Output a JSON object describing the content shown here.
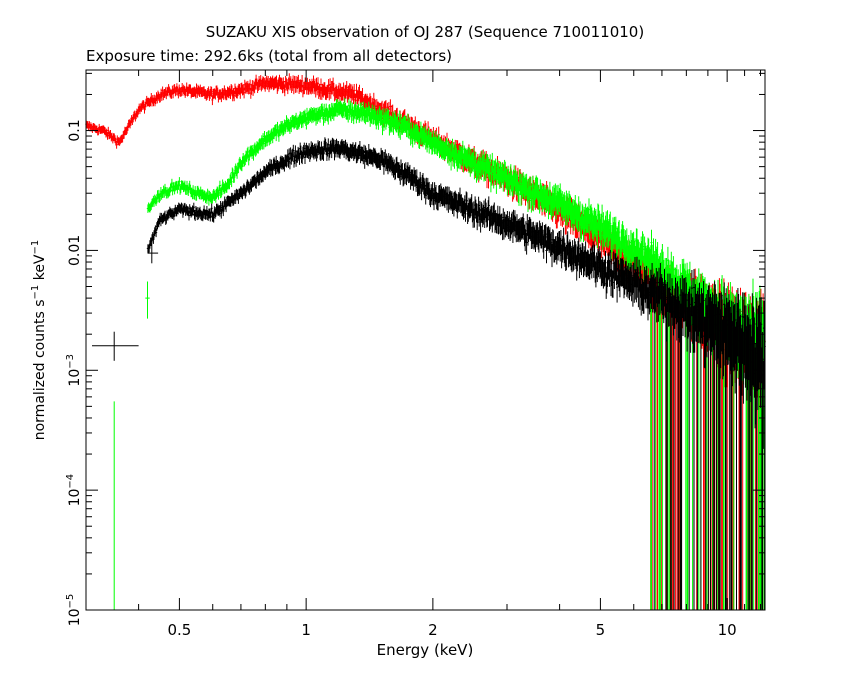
{
  "chart_data": {
    "type": "scatter",
    "title": "SUZAKU XIS observation of OJ 287 (Sequence 710011010)",
    "subtitle": "Exposure time: 292.6ks (total from all detectors)",
    "xlabel": "Energy (keV)",
    "ylabel": {
      "base": "normalized counts s",
      "exp1": "−1",
      "mid": " keV",
      "exp2": "−1"
    },
    "x_scale": "log",
    "y_scale": "log",
    "xlim": [
      0.3,
      12.3
    ],
    "ylim": [
      1e-05,
      0.32
    ],
    "grid": false,
    "x_ticks": [
      {
        "value": 0.5,
        "label": "0.5"
      },
      {
        "value": 1,
        "label": "1"
      },
      {
        "value": 2,
        "label": "2"
      },
      {
        "value": 5,
        "label": "5"
      },
      {
        "value": 10,
        "label": "10"
      }
    ],
    "y_ticks": [
      {
        "value": 1e-05,
        "base": "10",
        "exp": "−5"
      },
      {
        "value": 0.0001,
        "base": "10",
        "exp": "−4"
      },
      {
        "value": 0.001,
        "base": "10",
        "exp": "−3"
      },
      {
        "value": 0.01,
        "base": "0.01",
        "exp": ""
      },
      {
        "value": 0.1,
        "base": "0.1",
        "exp": ""
      }
    ],
    "series": [
      {
        "color": "#ff0000",
        "e_min": 0.3,
        "e_max": 12.3,
        "points": [
          {
            "x": 0.3,
            "y": 0.11
          },
          {
            "x": 0.33,
            "y": 0.1
          },
          {
            "x": 0.36,
            "y": 0.08
          },
          {
            "x": 0.4,
            "y": 0.15
          },
          {
            "x": 0.45,
            "y": 0.2
          },
          {
            "x": 0.5,
            "y": 0.22
          },
          {
            "x": 0.6,
            "y": 0.2
          },
          {
            "x": 0.7,
            "y": 0.22
          },
          {
            "x": 0.8,
            "y": 0.25
          },
          {
            "x": 1.0,
            "y": 0.24
          },
          {
            "x": 1.3,
            "y": 0.2
          },
          {
            "x": 1.7,
            "y": 0.12
          },
          {
            "x": 2.0,
            "y": 0.085
          },
          {
            "x": 2.5,
            "y": 0.055
          },
          {
            "x": 3.0,
            "y": 0.04
          },
          {
            "x": 4.0,
            "y": 0.022
          },
          {
            "x": 5.0,
            "y": 0.013
          },
          {
            "x": 6.0,
            "y": 0.008
          },
          {
            "x": 7.0,
            "y": 0.0055
          },
          {
            "x": 8.0,
            "y": 0.004
          },
          {
            "x": 10.0,
            "y": 0.0025
          },
          {
            "x": 12.3,
            "y": 0.0018
          }
        ]
      },
      {
        "color": "#00ff00",
        "e_min": 0.42,
        "e_max": 12.3,
        "points": [
          {
            "x": 0.42,
            "y": 0.022
          },
          {
            "x": 0.45,
            "y": 0.03
          },
          {
            "x": 0.5,
            "y": 0.035
          },
          {
            "x": 0.55,
            "y": 0.03
          },
          {
            "x": 0.6,
            "y": 0.028
          },
          {
            "x": 0.65,
            "y": 0.035
          },
          {
            "x": 0.7,
            "y": 0.055
          },
          {
            "x": 0.8,
            "y": 0.085
          },
          {
            "x": 0.9,
            "y": 0.11
          },
          {
            "x": 1.0,
            "y": 0.13
          },
          {
            "x": 1.2,
            "y": 0.15
          },
          {
            "x": 1.4,
            "y": 0.14
          },
          {
            "x": 1.7,
            "y": 0.11
          },
          {
            "x": 2.0,
            "y": 0.08
          },
          {
            "x": 3.0,
            "y": 0.04
          },
          {
            "x": 4.0,
            "y": 0.025
          },
          {
            "x": 5.0,
            "y": 0.016
          },
          {
            "x": 6.0,
            "y": 0.011
          },
          {
            "x": 7.0,
            "y": 0.0075
          },
          {
            "x": 8.0,
            "y": 0.005
          },
          {
            "x": 10.0,
            "y": 0.0028
          },
          {
            "x": 12.3,
            "y": 0.0017
          }
        ]
      },
      {
        "color": "#000000",
        "e_min": 0.42,
        "e_max": 12.3,
        "points": [
          {
            "x": 0.42,
            "y": 0.01
          },
          {
            "x": 0.45,
            "y": 0.018
          },
          {
            "x": 0.5,
            "y": 0.022
          },
          {
            "x": 0.6,
            "y": 0.02
          },
          {
            "x": 0.7,
            "y": 0.03
          },
          {
            "x": 0.8,
            "y": 0.045
          },
          {
            "x": 0.9,
            "y": 0.058
          },
          {
            "x": 1.0,
            "y": 0.068
          },
          {
            "x": 1.2,
            "y": 0.072
          },
          {
            "x": 1.5,
            "y": 0.058
          },
          {
            "x": 1.8,
            "y": 0.04
          },
          {
            "x": 2.0,
            "y": 0.03
          },
          {
            "x": 3.0,
            "y": 0.017
          },
          {
            "x": 4.0,
            "y": 0.011
          },
          {
            "x": 5.0,
            "y": 0.0075
          },
          {
            "x": 6.0,
            "y": 0.0055
          },
          {
            "x": 8.0,
            "y": 0.0035
          },
          {
            "x": 10.0,
            "y": 0.0024
          },
          {
            "x": 12.3,
            "y": 0.0017
          }
        ]
      }
    ],
    "isolated_points": [
      {
        "color": "#000000",
        "x": 0.35,
        "y": 0.0016,
        "x_lo": 0.31,
        "x_hi": 0.4,
        "y_lo": 0.0012,
        "y_hi": 0.0021
      },
      {
        "color": "#000000",
        "x": 0.43,
        "y": 0.0095,
        "x_lo": 0.42,
        "x_hi": 0.445,
        "y_lo": 0.0078,
        "y_hi": 0.0115
      },
      {
        "color": "#00ff00",
        "x": 0.35,
        "y": 1e-05,
        "x_lo": 0.35,
        "x_hi": 0.352,
        "y_lo": 1e-05,
        "y_hi": 0.00055
      },
      {
        "color": "#00ff00",
        "x": 0.42,
        "y": 0.004,
        "x_lo": 0.415,
        "x_hi": 0.425,
        "y_lo": 0.0027,
        "y_hi": 0.0055
      }
    ]
  }
}
